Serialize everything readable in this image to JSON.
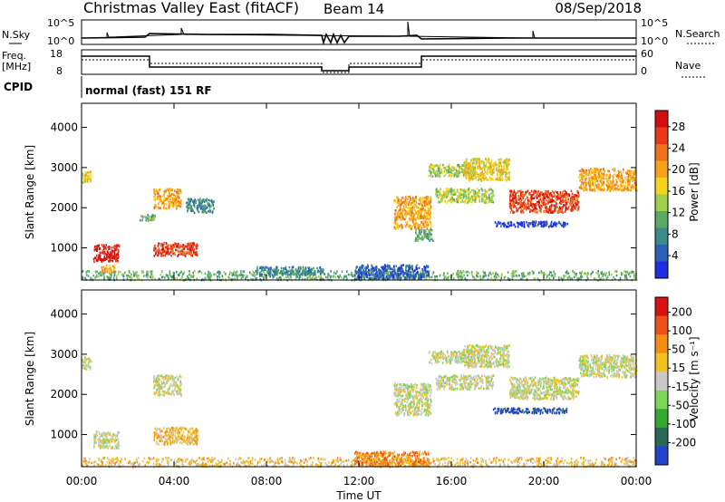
{
  "header": {
    "radar": "Christmas Valley East (fitACF)",
    "beam": "Beam 14",
    "date": "08/Sep/2018"
  },
  "panels": {
    "nsky": {
      "label": "N.Sky",
      "ticks": [
        "10^5",
        "10^0"
      ],
      "right_ticks": [
        "10^5",
        "10^0"
      ],
      "right_label": "N.Search"
    },
    "freq": {
      "label_line1": "Freq.",
      "label_line2": "[MHz]",
      "ticks": [
        "18",
        "8"
      ],
      "right_ticks": [
        "60",
        "0"
      ],
      "right_label": "Nave"
    },
    "cpid": {
      "label": "CPID",
      "value": "normal (fast) 151 RF"
    }
  },
  "chart_data": [
    {
      "type": "heatmap",
      "title": "",
      "xlabel": "Time UT",
      "ylabel": "Slant Range [km]",
      "x_ticks": [
        "00:00",
        "04:00",
        "08:00",
        "12:00",
        "16:00",
        "20:00",
        "00:00"
      ],
      "y_ticks": [
        1000,
        2000,
        3000,
        4000
      ],
      "ylim": [
        200,
        4600
      ],
      "colorbar": {
        "label": "Power [dB]",
        "ticks": [
          "4",
          "8",
          "12",
          "16",
          "20",
          "24",
          "28"
        ],
        "colors": [
          "#1f2ee0",
          "#2d60b8",
          "#3b8a8a",
          "#5aaa66",
          "#9fcf4a",
          "#f5d21e",
          "#f7a21a",
          "#f2701a",
          "#e83a18",
          "#d40e0e"
        ]
      },
      "blobs": [
        {
          "t0": 0.0,
          "t1": 0.4,
          "r0": 2650,
          "r1": 2950,
          "level": 5
        },
        {
          "t0": 0.5,
          "t1": 1.6,
          "r0": 680,
          "r1": 1100,
          "level": 9
        },
        {
          "t0": 0.8,
          "t1": 1.4,
          "r0": 400,
          "r1": 600,
          "level": 6
        },
        {
          "t0": 3.1,
          "t1": 4.3,
          "r0": 2000,
          "r1": 2500,
          "level": 6
        },
        {
          "t0": 3.1,
          "t1": 5.0,
          "r0": 820,
          "r1": 1150,
          "level": 8
        },
        {
          "t0": 2.5,
          "t1": 3.2,
          "r0": 1700,
          "r1": 1850,
          "level": 3
        },
        {
          "t0": 4.5,
          "t1": 5.7,
          "r0": 1900,
          "r1": 2250,
          "level": 2
        },
        {
          "t0": 0.0,
          "t1": 24.0,
          "r0": 220,
          "r1": 450,
          "level": 3
        },
        {
          "t0": 11.8,
          "t1": 15.0,
          "r0": 250,
          "r1": 600,
          "level": 1
        },
        {
          "t0": 7.5,
          "t1": 10.5,
          "r0": 350,
          "r1": 550,
          "level": 2
        },
        {
          "t0": 13.5,
          "t1": 15.1,
          "r0": 1500,
          "r1": 2300,
          "level": 6
        },
        {
          "t0": 14.4,
          "t1": 15.2,
          "r0": 1200,
          "r1": 1500,
          "level": 3
        },
        {
          "t0": 15.0,
          "t1": 17.0,
          "r0": 2800,
          "r1": 3100,
          "level": 4
        },
        {
          "t0": 15.3,
          "t1": 17.8,
          "r0": 2150,
          "r1": 2500,
          "level": 4
        },
        {
          "t0": 16.5,
          "t1": 18.5,
          "r0": 2700,
          "r1": 3250,
          "level": 5
        },
        {
          "t0": 18.5,
          "t1": 21.5,
          "r0": 1900,
          "r1": 2450,
          "level": 8
        },
        {
          "t0": 17.8,
          "t1": 21.0,
          "r0": 1550,
          "r1": 1680,
          "level": 0
        },
        {
          "t0": 21.5,
          "t1": 24.0,
          "r0": 2450,
          "r1": 3000,
          "level": 6
        }
      ]
    },
    {
      "type": "heatmap",
      "title": "",
      "xlabel": "Time UT",
      "ylabel": "Slant Range [km]",
      "x_ticks": [
        "00:00",
        "04:00",
        "08:00",
        "12:00",
        "16:00",
        "20:00",
        "00:00"
      ],
      "y_ticks": [
        1000,
        2000,
        3000,
        4000
      ],
      "ylim": [
        200,
        4600
      ],
      "colorbar": {
        "label": "Velocity [m s⁻¹]",
        "ticks": [
          "200",
          "100",
          "50",
          "15",
          "-15",
          "-50",
          "-100",
          "-200"
        ],
        "colors": [
          "#2244cc",
          "#2a6a55",
          "#33a833",
          "#7cd65a",
          "#c8c8c8",
          "#f2c21e",
          "#f58c14",
          "#ec5018",
          "#d81212"
        ]
      },
      "blobs": [
        {
          "t0": 0.0,
          "t1": 0.4,
          "r0": 2650,
          "r1": 2950,
          "level": 4
        },
        {
          "t0": 0.5,
          "t1": 1.6,
          "r0": 680,
          "r1": 1100,
          "level": 4
        },
        {
          "t0": 3.1,
          "t1": 4.3,
          "r0": 2000,
          "r1": 2500,
          "level": 4
        },
        {
          "t0": 3.1,
          "t1": 5.0,
          "r0": 780,
          "r1": 1200,
          "level": 5
        },
        {
          "t0": 0.0,
          "t1": 24.0,
          "r0": 220,
          "r1": 450,
          "level": 5
        },
        {
          "t0": 11.8,
          "t1": 15.0,
          "r0": 250,
          "r1": 600,
          "level": 6
        },
        {
          "t0": 13.5,
          "t1": 15.1,
          "r0": 1500,
          "r1": 2300,
          "level": 4
        },
        {
          "t0": 15.0,
          "t1": 17.0,
          "r0": 2800,
          "r1": 3100,
          "level": 4
        },
        {
          "t0": 15.3,
          "t1": 17.8,
          "r0": 2150,
          "r1": 2500,
          "level": 4
        },
        {
          "t0": 16.5,
          "t1": 18.5,
          "r0": 2700,
          "r1": 3250,
          "level": 4
        },
        {
          "t0": 18.5,
          "t1": 21.5,
          "r0": 1900,
          "r1": 2450,
          "level": 4
        },
        {
          "t0": 17.8,
          "t1": 21.0,
          "r0": 1550,
          "r1": 1680,
          "level": 0
        },
        {
          "t0": 21.5,
          "t1": 24.0,
          "r0": 2450,
          "r1": 3000,
          "level": 4
        }
      ]
    }
  ]
}
